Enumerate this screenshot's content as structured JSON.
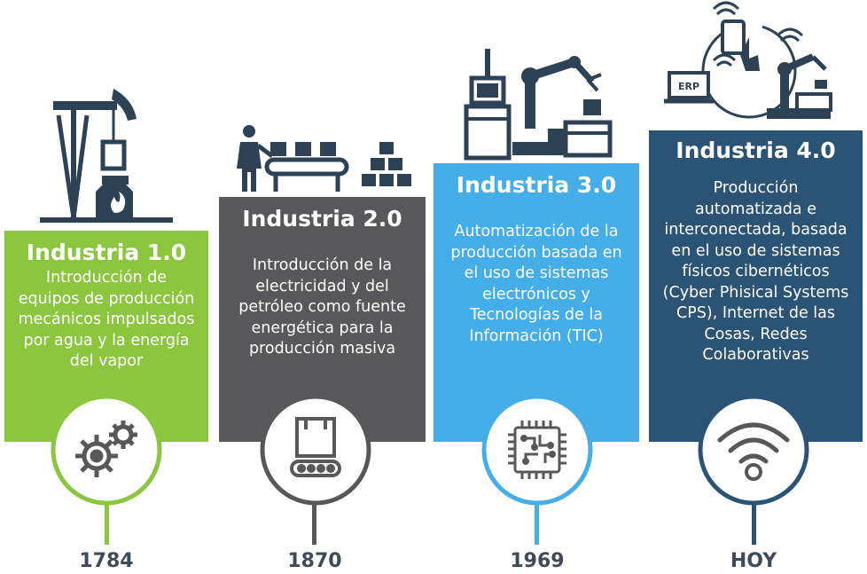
{
  "stages": [
    {
      "title": "Industria 1.0",
      "description": "Introducción de equipos de producción mecánicos impulsados por agua y la energía del vapor",
      "year": "1784",
      "color": "#8cc63f",
      "icon": "gears-icon",
      "illustration": "oil-pump-furnace-illustration"
    },
    {
      "title": "Industria 2.0",
      "description": "Introducción de la electricidad y del petróleo como fuente energética para la producción masiva",
      "year": "1870",
      "color": "#58585b",
      "icon": "conveyor-box-icon",
      "illustration": "worker-assembly-line-illustration"
    },
    {
      "title": "Industria 3.0",
      "description": "Automatización de la producción basada en el uso de sistemas electrónicos y Tecnologías de la Información (TIC)",
      "year": "1969",
      "color": "#45aee8",
      "icon": "microchip-icon",
      "illustration": "robotic-arm-illustration"
    },
    {
      "title": "Industria 4.0",
      "description": "Producción automatizada e interconectada, basada en el uso de sistemas físicos cibernéticos (Cyber Phisical Systems CPS), Internet de las Cosas, Redes Colaborativas",
      "year": "HOY",
      "color": "#2b5375",
      "icon": "wifi-icon",
      "illustration": "erp-network-illustration",
      "illustration_label": "ERP"
    }
  ]
}
